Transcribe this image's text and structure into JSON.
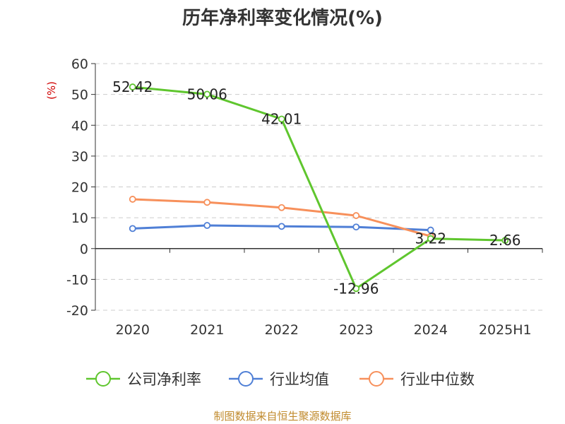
{
  "chart_data": {
    "type": "line",
    "title": "历年净利率变化情况(%)",
    "ylabel": "(%)",
    "xlabel": "",
    "categories": [
      "2020",
      "2021",
      "2022",
      "2023",
      "2024",
      "2025H1"
    ],
    "ylim": [
      -20,
      60
    ],
    "yticks": [
      -20,
      -10,
      0,
      10,
      20,
      30,
      40,
      50,
      60
    ],
    "grid": true,
    "legend_position": "bottom",
    "series": [
      {
        "name": "公司净利率",
        "color": "#5fc62e",
        "values": [
          52.42,
          50.06,
          42.01,
          -12.96,
          3.22,
          2.66
        ],
        "labels": [
          "52.42",
          "50.06",
          "42.01",
          "-12.96",
          "3.22",
          "2.66"
        ]
      },
      {
        "name": "行业均值",
        "color": "#4f7fd6",
        "values": [
          6.5,
          7.5,
          7.2,
          7.0,
          6.0,
          null
        ]
      },
      {
        "name": "行业中位数",
        "color": "#f7905b",
        "values": [
          16.0,
          15.0,
          13.3,
          10.7,
          4.0,
          null
        ]
      }
    ],
    "source": "制图数据来自恒生聚源数据库"
  }
}
